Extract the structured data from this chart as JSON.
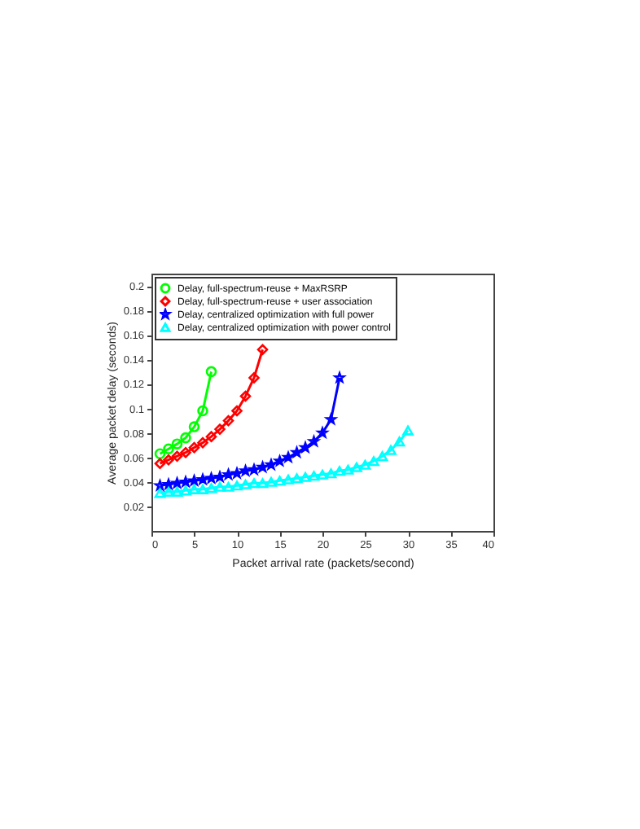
{
  "chart_data": {
    "type": "line",
    "xlabel": "Packet arrival rate (packets/second)",
    "ylabel": "Average packet delay (seconds)",
    "xlim": [
      0,
      40
    ],
    "xticks": [
      0,
      5,
      10,
      15,
      20,
      25,
      30,
      35,
      40
    ],
    "ylim": [
      0,
      0.21
    ],
    "yticks": [
      0.02,
      0.04,
      0.06,
      0.08,
      0.1,
      0.12,
      0.14,
      0.16,
      0.18,
      0.2
    ],
    "grid": false,
    "legend": "top left",
    "line_style": "solid",
    "series": [
      {
        "name": "Delay, full-spectrum-reuse + MaxRSRP",
        "color": "#00ff00",
        "marker": "circle",
        "x": [
          1,
          2,
          3,
          4,
          5,
          6,
          7
        ],
        "values": [
          0.063,
          0.067,
          0.071,
          0.076,
          0.085,
          0.098,
          0.13
        ]
      },
      {
        "name": "Delay, full-spectrum-reuse + user association",
        "color": "#ff0000",
        "marker": "diamond",
        "x": [
          1,
          2,
          3,
          4,
          5,
          6,
          7,
          8,
          9,
          10,
          11,
          12,
          13
        ],
        "values": [
          0.055,
          0.058,
          0.061,
          0.064,
          0.068,
          0.072,
          0.077,
          0.083,
          0.09,
          0.098,
          0.11,
          0.125,
          0.148
        ]
      },
      {
        "name": "Delay, centralized optimization with full power",
        "color": "#0000ff",
        "marker": "star",
        "x": [
          1,
          2,
          3,
          4,
          5,
          6,
          7,
          8,
          9,
          10,
          11,
          12,
          13,
          14,
          15,
          16,
          17,
          18,
          19,
          20,
          21,
          22
        ],
        "values": [
          0.037,
          0.038,
          0.039,
          0.04,
          0.041,
          0.042,
          0.043,
          0.044,
          0.046,
          0.047,
          0.049,
          0.05,
          0.052,
          0.054,
          0.057,
          0.06,
          0.064,
          0.068,
          0.073,
          0.08,
          0.091,
          0.125
        ]
      },
      {
        "name": "Delay, centralized optimization with power control",
        "color": "#00ffff",
        "marker": "triangle",
        "x": [
          1,
          2,
          3,
          4,
          5,
          6,
          7,
          8,
          9,
          10,
          11,
          12,
          13,
          14,
          15,
          16,
          17,
          18,
          19,
          20,
          21,
          22,
          23,
          24,
          25,
          26,
          27,
          28,
          29,
          30
        ],
        "values": [
          0.031,
          0.032,
          0.032,
          0.033,
          0.034,
          0.034,
          0.035,
          0.036,
          0.036,
          0.037,
          0.038,
          0.039,
          0.039,
          0.04,
          0.041,
          0.042,
          0.043,
          0.044,
          0.045,
          0.046,
          0.047,
          0.049,
          0.05,
          0.052,
          0.054,
          0.057,
          0.061,
          0.066,
          0.073,
          0.082
        ]
      }
    ]
  }
}
